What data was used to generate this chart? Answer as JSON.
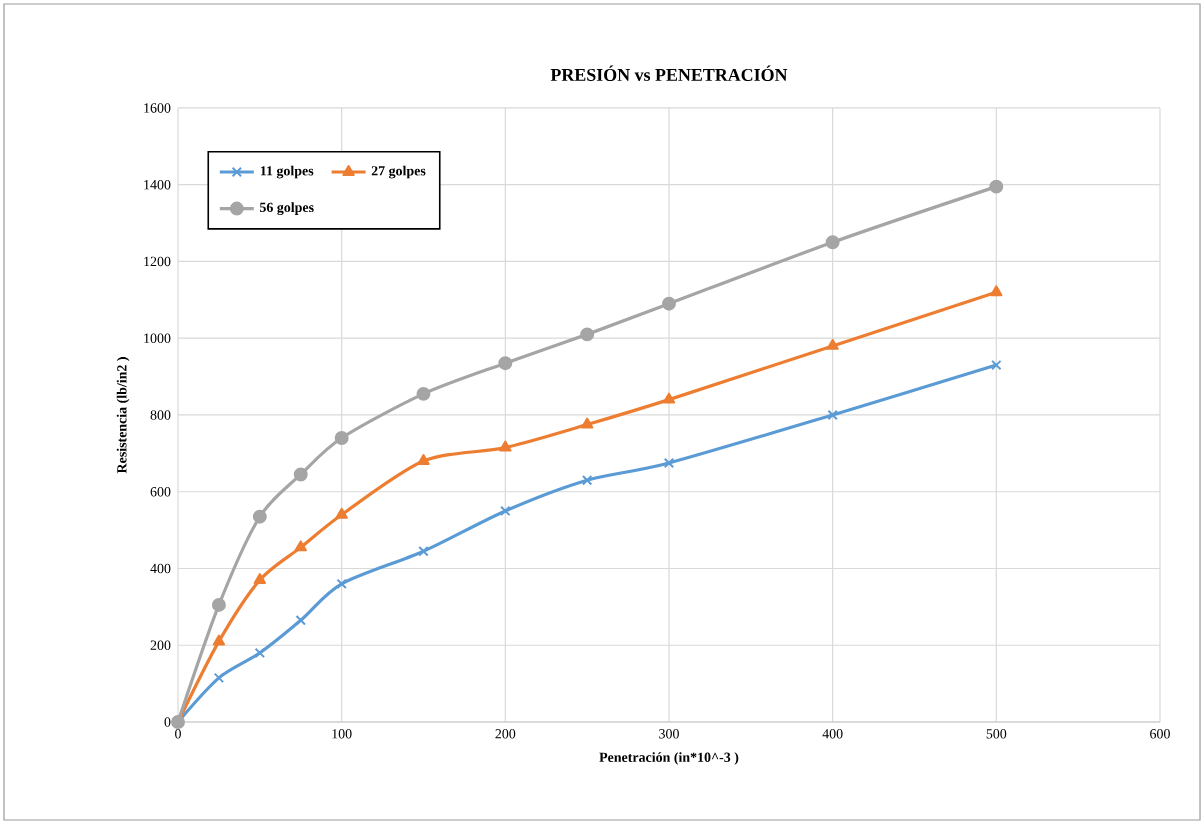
{
  "chart_data": {
    "type": "line",
    "title": "PRESIÓN vs PENETRACIÓN",
    "xlabel": "Penetración (in*10^-3 )",
    "ylabel": "Resistencia (lb/in2 )",
    "x": [
      0,
      25,
      50,
      75,
      100,
      150,
      200,
      250,
      300,
      400,
      500
    ],
    "series": [
      {
        "name": "11 golpes",
        "color": "#5b9bd5",
        "marker": "cross",
        "values": [
          0,
          115,
          180,
          265,
          360,
          445,
          550,
          630,
          675,
          800,
          930
        ]
      },
      {
        "name": "27 golpes",
        "color": "#ed7d31",
        "marker": "triangle",
        "values": [
          0,
          210,
          370,
          455,
          540,
          680,
          715,
          775,
          840,
          980,
          1120
        ]
      },
      {
        "name": "56 golpes",
        "color": "#a5a5a5",
        "marker": "circle",
        "values": [
          0,
          305,
          535,
          645,
          740,
          855,
          935,
          1010,
          1090,
          1250,
          1395
        ]
      }
    ],
    "xlim": [
      0,
      600
    ],
    "xticks": [
      0,
      100,
      200,
      300,
      400,
      500,
      600
    ],
    "ylim": [
      0,
      1600
    ],
    "yticks": [
      0,
      200,
      400,
      600,
      800,
      1000,
      1200,
      1400,
      1600
    ],
    "grid": true,
    "legend": "top left",
    "line_style": "solid"
  }
}
